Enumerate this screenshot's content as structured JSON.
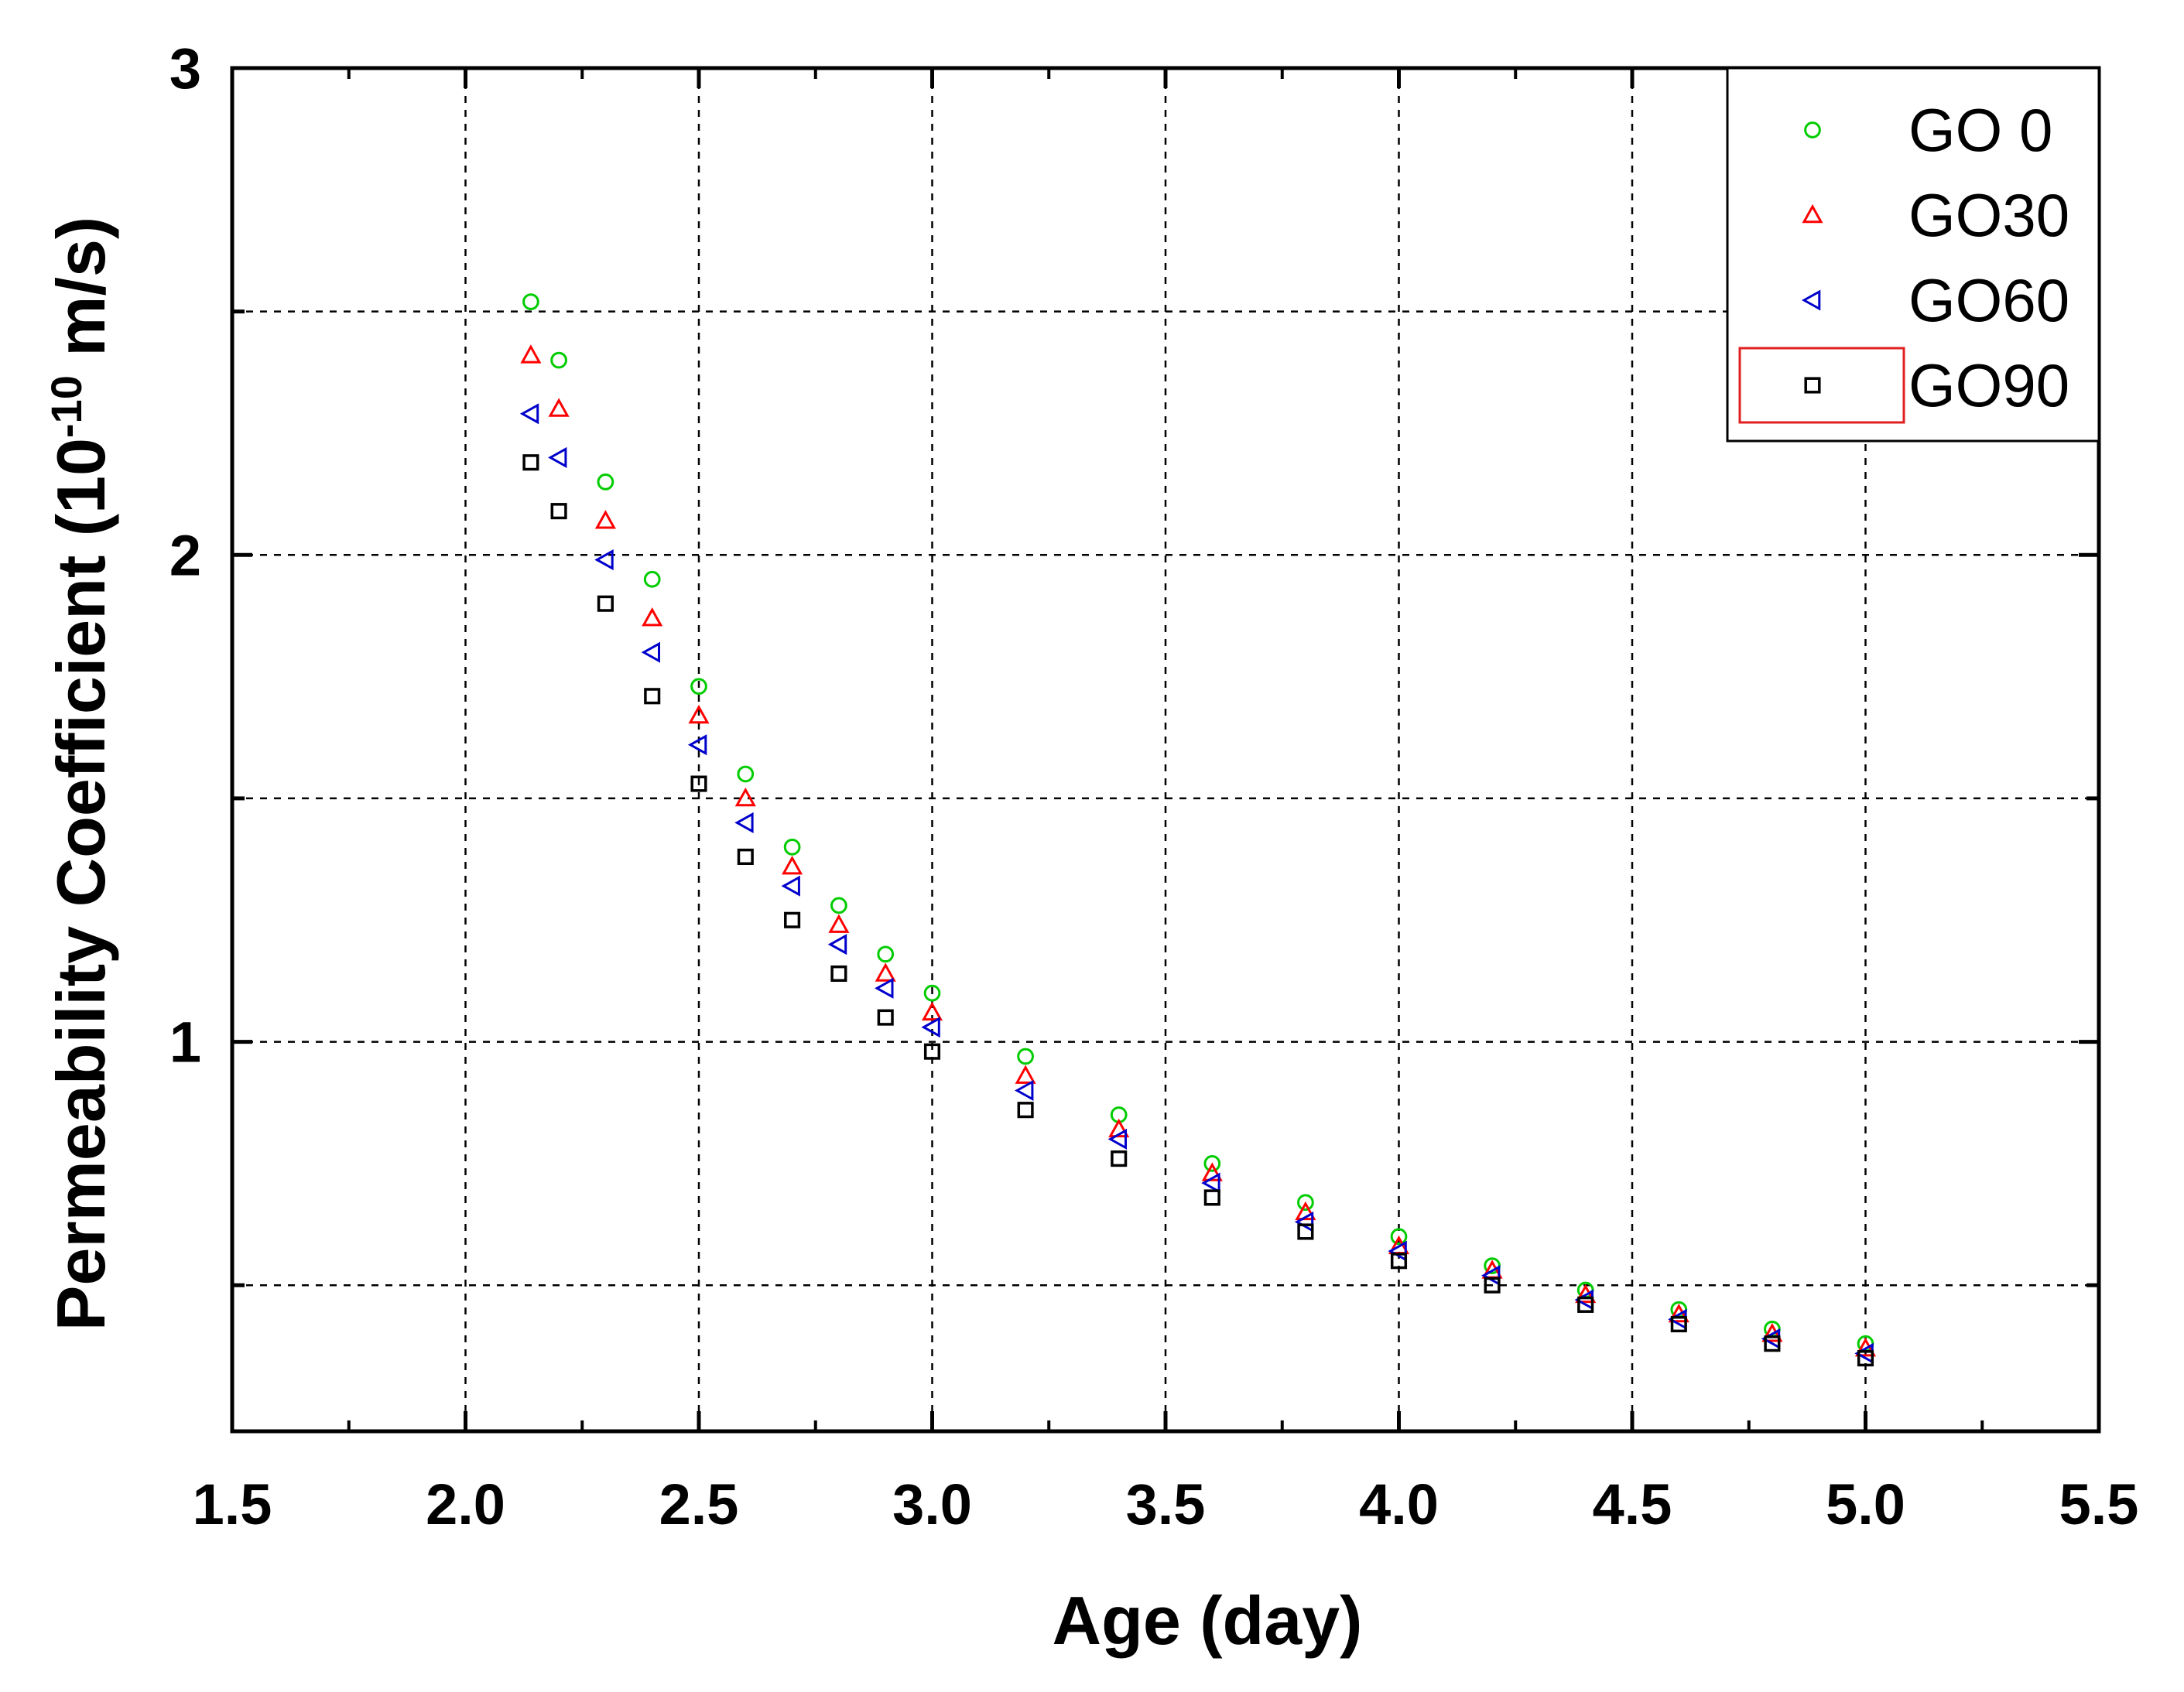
{
  "chart_data": {
    "type": "scatter",
    "title": "",
    "xlabel": "Age (day)",
    "ylabel_parts": {
      "prefix": "Permeability Coefficient (10",
      "exponent": "-10",
      "suffix": " m/s)"
    },
    "xlim": [
      1.5,
      5.5
    ],
    "ylim": [
      0.2,
      3.0
    ],
    "x_ticks": [
      "1.5",
      "2.0",
      "2.5",
      "3.0",
      "3.5",
      "4.0",
      "4.5",
      "5.0",
      "5.5"
    ],
    "y_ticks": [
      {
        "value": 1,
        "label": "1"
      },
      {
        "value": 2,
        "label": "2"
      },
      {
        "value": 3,
        "label": "3"
      }
    ],
    "grid": true,
    "legend_position": "top-right",
    "series": [
      {
        "name": "GO 0",
        "marker": "circle",
        "color": "#00cc00",
        "x": [
          2.14,
          2.2,
          2.3,
          2.4,
          2.5,
          2.6,
          2.7,
          2.8,
          2.9,
          3.0,
          3.2,
          3.4,
          3.6,
          3.8,
          4.0,
          4.2,
          4.4,
          4.6,
          4.8,
          5.0
        ],
        "y": [
          2.52,
          2.4,
          2.15,
          1.95,
          1.73,
          1.55,
          1.4,
          1.28,
          1.18,
          1.1,
          0.97,
          0.85,
          0.75,
          0.67,
          0.6,
          0.54,
          0.49,
          0.45,
          0.41,
          0.38
        ]
      },
      {
        "name": "GO30",
        "marker": "triangle-up",
        "color": "#ff0000",
        "x": [
          2.14,
          2.2,
          2.3,
          2.4,
          2.5,
          2.6,
          2.7,
          2.8,
          2.9,
          3.0,
          3.2,
          3.4,
          3.6,
          3.8,
          4.0,
          4.2,
          4.4,
          4.6,
          4.8,
          5.0
        ],
        "y": [
          2.41,
          2.3,
          2.07,
          1.87,
          1.67,
          1.5,
          1.36,
          1.24,
          1.14,
          1.06,
          0.93,
          0.82,
          0.73,
          0.65,
          0.58,
          0.53,
          0.48,
          0.44,
          0.4,
          0.37
        ]
      },
      {
        "name": "GO60",
        "marker": "triangle-left",
        "color": "#0000cc",
        "x": [
          2.14,
          2.2,
          2.3,
          2.4,
          2.5,
          2.6,
          2.7,
          2.8,
          2.9,
          3.0,
          3.2,
          3.4,
          3.6,
          3.8,
          4.0,
          4.2,
          4.4,
          4.6,
          4.8,
          5.0
        ],
        "y": [
          2.29,
          2.2,
          1.99,
          1.8,
          1.61,
          1.45,
          1.32,
          1.2,
          1.11,
          1.03,
          0.9,
          0.8,
          0.71,
          0.63,
          0.57,
          0.52,
          0.47,
          0.43,
          0.39,
          0.36
        ]
      },
      {
        "name": "GO90",
        "marker": "square",
        "color": "#000000",
        "x": [
          2.14,
          2.2,
          2.3,
          2.4,
          2.5,
          2.6,
          2.7,
          2.8,
          2.9,
          3.0,
          3.2,
          3.4,
          3.6,
          3.8,
          4.0,
          4.2,
          4.4,
          4.6,
          4.8,
          5.0
        ],
        "y": [
          2.19,
          2.09,
          1.9,
          1.71,
          1.53,
          1.38,
          1.25,
          1.14,
          1.05,
          0.98,
          0.86,
          0.76,
          0.68,
          0.61,
          0.55,
          0.5,
          0.46,
          0.42,
          0.38,
          0.35
        ]
      }
    ]
  }
}
